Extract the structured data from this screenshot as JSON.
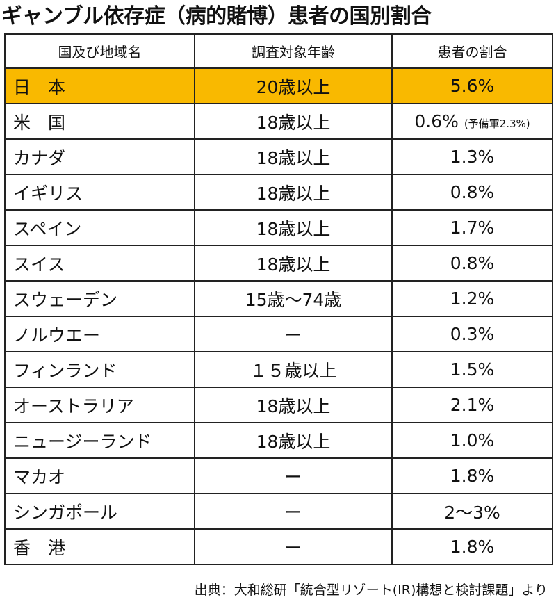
{
  "title": "ギャンブル依存症（病的賭博）患者の国別割合",
  "table": {
    "headers": [
      "国及び地域名",
      "調査対象年齢",
      "患者の割合"
    ],
    "rows": [
      {
        "country": "日　本",
        "age": "20歳以上",
        "ratio": "5.6%",
        "note": ""
      },
      {
        "country": "米　国",
        "age": "18歳以上",
        "ratio": "0.6%",
        "note": "(予備軍2.3%)"
      },
      {
        "country": "カナダ",
        "age": "18歳以上",
        "ratio": "1.3%",
        "note": ""
      },
      {
        "country": "イギリス",
        "age": "18歳以上",
        "ratio": "0.8%",
        "note": ""
      },
      {
        "country": "スペイン",
        "age": "18歳以上",
        "ratio": "1.7%",
        "note": ""
      },
      {
        "country": "スイス",
        "age": "18歳以上",
        "ratio": "0.8%",
        "note": ""
      },
      {
        "country": "スウェーデン",
        "age": "15歳～74歳",
        "ratio": "1.2%",
        "note": ""
      },
      {
        "country": "ノルウエー",
        "age": "ー",
        "ratio": "0.3%",
        "note": ""
      },
      {
        "country": "フィンランド",
        "age": "１５歳以上",
        "ratio": "1.5%",
        "note": ""
      },
      {
        "country": "オーストラリア",
        "age": "18歳以上",
        "ratio": "2.1%",
        "note": ""
      },
      {
        "country": "ニュージーランド",
        "age": "18歳以上",
        "ratio": "1.0%",
        "note": ""
      },
      {
        "country": "マカオ",
        "age": "ー",
        "ratio": "1.8%",
        "note": ""
      },
      {
        "country": "シンガポール",
        "age": "ー",
        "ratio": "2～3%",
        "note": ""
      },
      {
        "country": "香　港",
        "age": "ー",
        "ratio": "1.8%",
        "note": ""
      }
    ]
  },
  "highlight": {
    "row_index": 0,
    "color": "#f9b900"
  },
  "source": "出典：大和総研「統合型リゾート(IR)構想と検討課題」より"
}
